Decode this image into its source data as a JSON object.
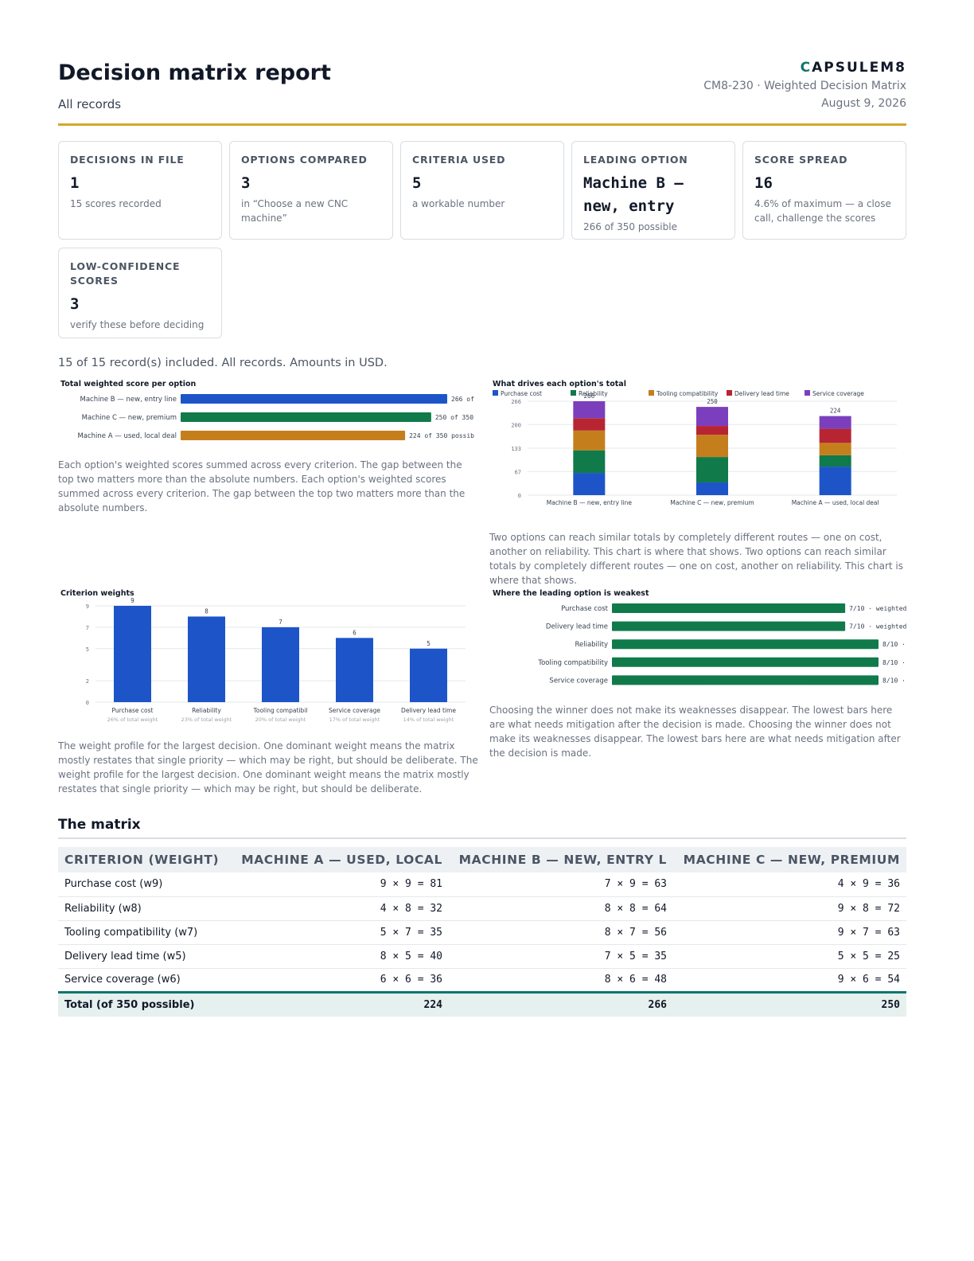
{
  "header": {
    "title": "Decision matrix report",
    "subtitle": "All records",
    "brand_mark": "C",
    "brand_rest": "APSULEM8",
    "doc_ref": "CM8-230 · Weighted Decision Matrix",
    "date": "August 9, 2026"
  },
  "cards": [
    {
      "label": "Decisions in file",
      "value": "1",
      "note": "15 scores recorded"
    },
    {
      "label": "Options compared",
      "value": "3",
      "note": "in “Choose a new CNC machine”"
    },
    {
      "label": "Criteria used",
      "value": "5",
      "note": "a workable number"
    },
    {
      "label": "Leading option",
      "value": "Machine B — new, entry",
      "note": "266 of 350 possible"
    },
    {
      "label": "Score spread",
      "value": "16",
      "note": "4.6% of maximum — a close call, challenge the scores"
    },
    {
      "label": "Low-confidence scores",
      "value": "3",
      "note": "verify these before deciding"
    }
  ],
  "records_line": "15 of 15 record(s) included. All records. Amounts in USD.",
  "colors": {
    "accent_rule": "#d4a72c",
    "brand": "#0f766e",
    "purchase_cost": "#1d55c9",
    "reliability": "#107a4a",
    "tooling": "#c47f1c",
    "delivery": "#b82532",
    "service": "#7b3fbd",
    "weakest_bar": "#107a4a"
  },
  "totals_chart": {
    "title": "Total weighted score per option",
    "caption": "Each option's weighted scores summed across every criterion. The gap between the top two matters more than the absolute numbers. Each option's weighted scores summed across every criterion. The gap between the top two matters more than the absolute numbers.",
    "chart_data": {
      "type": "bar",
      "orientation": "horizontal",
      "categories": [
        "Machine B — new, entry line",
        "Machine C — new, premium",
        "Machine A — used, local deal"
      ],
      "values": [
        266,
        250,
        224
      ],
      "value_labels": [
        "266 of",
        "250 of 350",
        "224 of 350 possib"
      ],
      "xlim": [
        0,
        266
      ],
      "colors": [
        "#1d55c9",
        "#107a4a",
        "#c47f1c"
      ]
    }
  },
  "drivers_chart": {
    "title": "What drives each option's total",
    "caption": "Two options can reach similar totals by completely different routes — one on cost, another on reliability. This chart is where that shows. Two options can reach similar totals by completely different routes — one on cost, another on reliability. This chart is where that shows.",
    "chart_data": {
      "type": "bar",
      "stacked": true,
      "categories": [
        "Machine B — new, entry line",
        "Machine C — new, premium",
        "Machine A — used, local deal"
      ],
      "series": [
        {
          "name": "Purchase cost",
          "values": [
            63,
            36,
            81
          ],
          "color": "#1d55c9"
        },
        {
          "name": "Reliability",
          "values": [
            64,
            72,
            32
          ],
          "color": "#107a4a"
        },
        {
          "name": "Tooling compatibility",
          "values": [
            56,
            63,
            35
          ],
          "color": "#c47f1c"
        },
        {
          "name": "Delivery lead time",
          "values": [
            35,
            25,
            40
          ],
          "color": "#b82532"
        },
        {
          "name": "Service coverage",
          "values": [
            48,
            54,
            36
          ],
          "color": "#7b3fbd"
        }
      ],
      "totals": [
        266,
        250,
        224
      ],
      "yticks": [
        0,
        67,
        133,
        200,
        266
      ],
      "ylim": [
        0,
        266
      ],
      "legend": "top"
    }
  },
  "weights_chart": {
    "title": "Criterion weights",
    "caption": "The weight profile for the largest decision. One dominant weight means the matrix mostly restates that single priority — which may be right, but should be deliberate. The weight profile for the largest decision. One dominant weight means the matrix mostly restates that single priority — which may be right, but should be deliberate.",
    "chart_data": {
      "type": "bar",
      "categories": [
        "Purchase cost",
        "Reliability",
        "Tooling compatibil",
        "Service coverage",
        "Delivery lead time"
      ],
      "values": [
        9,
        8,
        7,
        6,
        5
      ],
      "sublabels": [
        "26% of total weight",
        "23% of total weight",
        "20% of total weight",
        "17% of total weight",
        "14% of total weight"
      ],
      "yticks": [
        0,
        2,
        5,
        7,
        9
      ],
      "ylim": [
        0,
        9
      ],
      "color": "#1d55c9"
    }
  },
  "weakest_chart": {
    "title": "Where the leading option is weakest",
    "caption": "Choosing the winner does not make its weaknesses disappear. The lowest bars here are what needs mitigation after the decision is made. Choosing the winner does not make its weaknesses disappear. The lowest bars here are what needs mitigation after the decision is made.",
    "chart_data": {
      "type": "bar",
      "orientation": "horizontal",
      "categories": [
        "Purchase cost",
        "Delivery lead time",
        "Reliability",
        "Tooling compatibility",
        "Service coverage"
      ],
      "values": [
        7,
        7,
        8,
        8,
        8
      ],
      "value_labels": [
        "7/10 · weighted",
        "7/10 · weighted",
        "8/10 ·",
        "8/10 ·",
        "8/10 ·"
      ],
      "xlim": [
        0,
        8
      ],
      "color": "#107a4a"
    }
  },
  "matrix": {
    "title": "The matrix",
    "columns": [
      "Criterion (weight)",
      "Machine A — used, local",
      "Machine B — new, entry l",
      "Machine C — new, premium"
    ],
    "rows": [
      {
        "criterion": "Purchase cost (w9)",
        "a": "9 × 9 = 81",
        "b": "7 × 9 = 63",
        "c": "4 × 9 = 36"
      },
      {
        "criterion": "Reliability (w8)",
        "a": "4 × 8 = 32",
        "b": "8 × 8 = 64",
        "c": "9 × 8 = 72"
      },
      {
        "criterion": "Tooling compatibility (w7)",
        "a": "5 × 7 = 35",
        "b": "8 × 7 = 56",
        "c": "9 × 7 = 63"
      },
      {
        "criterion": "Delivery lead time (w5)",
        "a": "8 × 5 = 40",
        "b": "7 × 5 = 35",
        "c": "5 × 5 = 25"
      },
      {
        "criterion": "Service coverage (w6)",
        "a": "6 × 6 = 36",
        "b": "8 × 6 = 48",
        "c": "9 × 6 = 54"
      }
    ],
    "total": {
      "label": "Total (of 350 possible)",
      "a": "224",
      "b": "266",
      "c": "250"
    }
  }
}
